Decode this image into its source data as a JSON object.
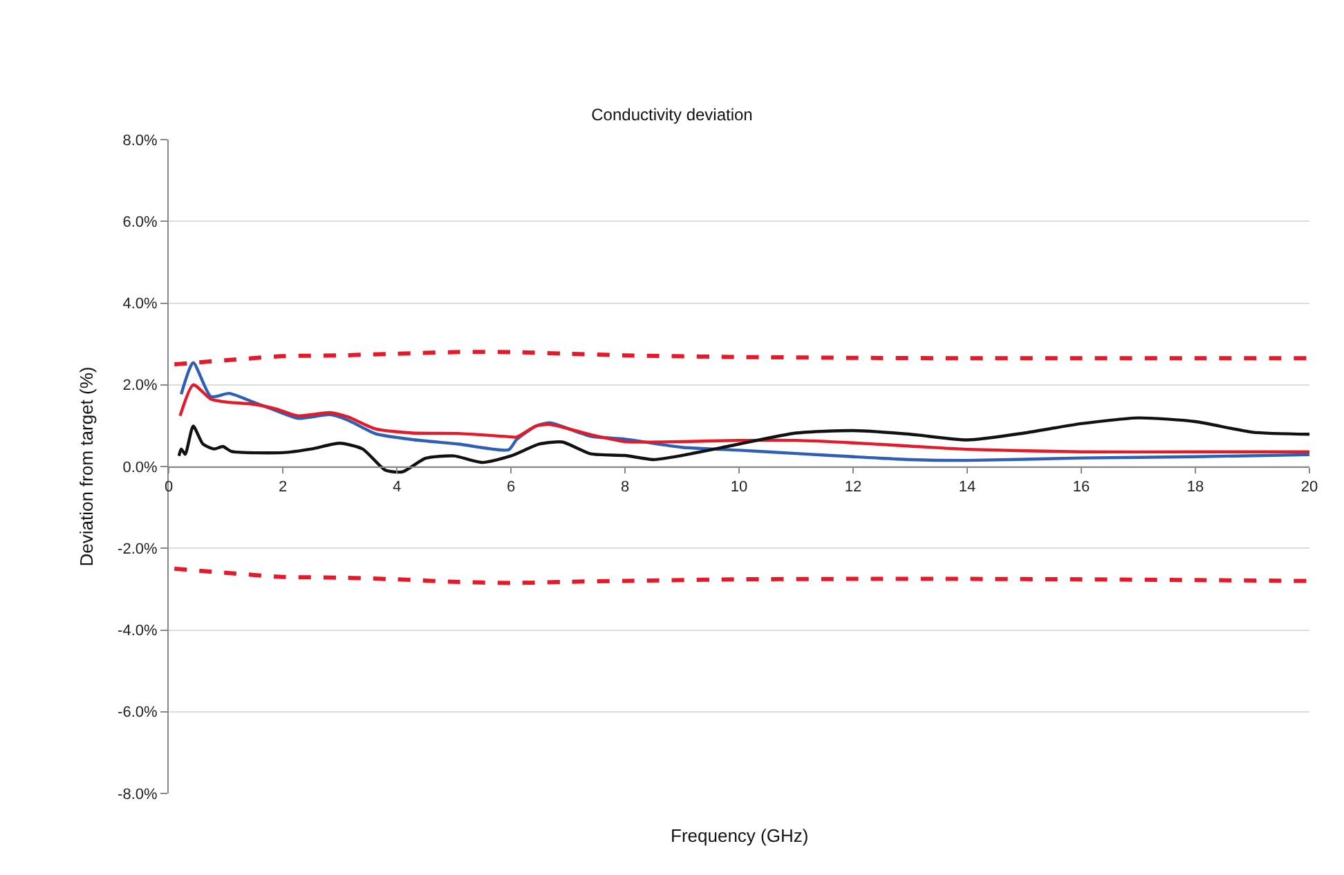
{
  "chart_data": {
    "type": "line",
    "title": "Conductivity deviation",
    "xlabel": "Frequency (GHz)",
    "ylabel": "Deviation from target (%)",
    "xlim": [
      0,
      20
    ],
    "xticks": [
      0,
      2,
      4,
      6,
      8,
      10,
      12,
      14,
      16,
      18,
      20
    ],
    "ylim": [
      -8,
      8
    ],
    "yticks": [
      {
        "value": 8,
        "label": "8.0%"
      },
      {
        "value": 6,
        "label": "6.0%"
      },
      {
        "value": 4,
        "label": "4.0%"
      },
      {
        "value": 2,
        "label": "2.0%"
      },
      {
        "value": 0,
        "label": "0.0%"
      },
      {
        "value": -2,
        "label": "-2.0%"
      },
      {
        "value": -4,
        "label": "-4.0%"
      },
      {
        "value": -6,
        "label": "-6.0%"
      },
      {
        "value": -8,
        "label": "-8.0%"
      }
    ],
    "grid": "y",
    "marker": "none",
    "line_style": "solid",
    "series": [
      {
        "color": "#e31a2a",
        "line_style": "dashed",
        "x": [
          0.1,
          1,
          2,
          3,
          4,
          5,
          6,
          7,
          8,
          10,
          12,
          14,
          16,
          18,
          20
        ],
        "values": [
          2.5,
          2.6,
          2.7,
          2.72,
          2.76,
          2.8,
          2.8,
          2.76,
          2.72,
          2.68,
          2.66,
          2.65,
          2.65,
          2.65,
          2.65
        ]
      },
      {
        "color": "#e31a2a",
        "line_style": "dashed",
        "x": [
          0.1,
          1,
          2,
          3,
          4,
          5,
          6,
          7,
          8,
          10,
          12,
          14,
          16,
          18,
          20
        ],
        "values": [
          -2.5,
          -2.6,
          -2.7,
          -2.72,
          -2.76,
          -2.82,
          -2.85,
          -2.82,
          -2.8,
          -2.76,
          -2.75,
          -2.75,
          -2.76,
          -2.78,
          -2.8
        ]
      },
      {
        "color": "#2f5fb5",
        "x": [
          0.22,
          0.43,
          0.74,
          1.06,
          1.46,
          1.86,
          2.27,
          2.83,
          3.15,
          3.63,
          4.27,
          5.08,
          5.96,
          6.1,
          6.44,
          6.68,
          7.4,
          8,
          9,
          10,
          11,
          12,
          13,
          14,
          16,
          18,
          20
        ],
        "values": [
          1.77,
          2.54,
          1.71,
          1.79,
          1.59,
          1.38,
          1.18,
          1.27,
          1.13,
          0.8,
          0.66,
          0.55,
          0.41,
          0.66,
          0.99,
          1.07,
          0.74,
          0.67,
          0.47,
          0.4,
          0.32,
          0.24,
          0.17,
          0.15,
          0.21,
          0.24,
          0.29
        ]
      },
      {
        "color": "#e31a2a",
        "x": [
          0.2,
          0.43,
          0.74,
          1.06,
          1.46,
          1.86,
          2.27,
          2.83,
          3.15,
          3.63,
          4.27,
          5.08,
          5.96,
          6.1,
          6.44,
          6.68,
          7.4,
          8,
          9,
          10,
          11,
          12,
          13,
          14,
          16,
          18,
          20
        ],
        "values": [
          1.24,
          2.0,
          1.65,
          1.57,
          1.53,
          1.42,
          1.24,
          1.32,
          1.21,
          0.92,
          0.82,
          0.81,
          0.73,
          0.72,
          0.99,
          1.03,
          0.78,
          0.61,
          0.61,
          0.64,
          0.64,
          0.58,
          0.5,
          0.42,
          0.36,
          0.36,
          0.36
        ]
      },
      {
        "color": "#111111",
        "x": [
          0.18,
          0.22,
          0.29,
          0.43,
          0.6,
          0.8,
          0.95,
          1.1,
          2,
          2.5,
          3,
          3.4,
          3.8,
          4.1,
          4.5,
          5,
          5.5,
          6,
          6.5,
          6.9,
          7.4,
          8,
          8.5,
          9,
          10,
          11,
          12,
          13,
          14,
          15,
          16,
          17,
          18,
          19,
          20
        ],
        "values": [
          0.26,
          0.43,
          0.3,
          0.99,
          0.55,
          0.43,
          0.49,
          0.37,
          0.34,
          0.43,
          0.57,
          0.43,
          -0.09,
          -0.13,
          0.2,
          0.26,
          0.1,
          0.26,
          0.55,
          0.6,
          0.31,
          0.27,
          0.17,
          0.27,
          0.55,
          0.82,
          0.88,
          0.79,
          0.65,
          0.82,
          1.05,
          1.19,
          1.1,
          0.84,
          0.79
        ]
      }
    ]
  }
}
